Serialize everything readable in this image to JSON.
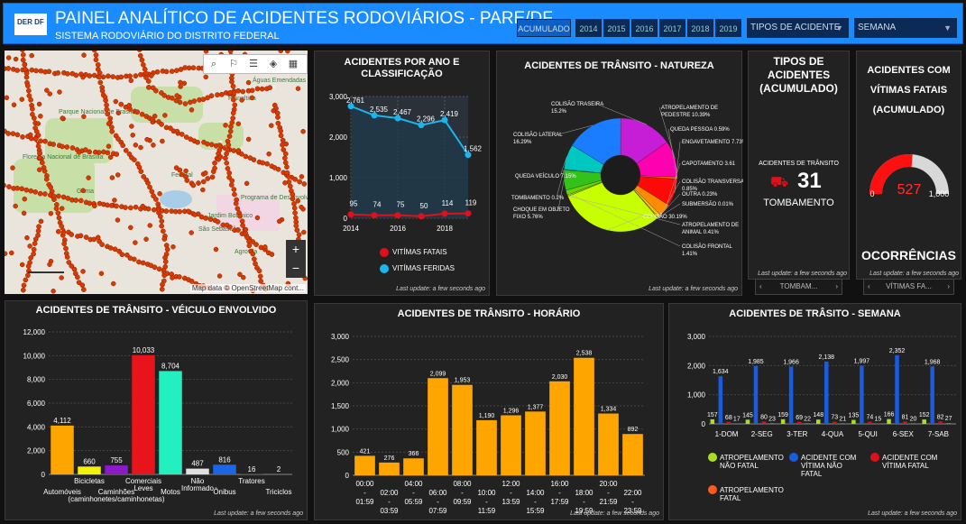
{
  "header": {
    "logo": "DER DF",
    "title": "PAINEL ANALÍTICO DE ACIDENTES RODOVIÁRIOS - PARE/DF",
    "subtitle": "SISTEMA RODOVIÁRIO DO DISTRITO FEDERAL"
  },
  "filters": {
    "years": [
      "ACUMULADO",
      "2014",
      "2015",
      "2016",
      "2017",
      "2018",
      "2019"
    ],
    "tipo": "TIPOS DE ACIDENTE",
    "semana": "SEMANA"
  },
  "map": {
    "labels": [
      "Águas Emendadas",
      "Parque Nacional de Brasília",
      "Floresta Nacional de Brasília",
      "Planaltina",
      "Federal",
      "Jardim Botânico",
      "São Sebastião",
      "Agrovila",
      "Gama",
      "Programa de Desenvolvimento do Distrito Federal e Entorno"
    ],
    "attribution": "Map data © OpenStreetMap cont...",
    "zoom_in": "+",
    "zoom_out": "−"
  },
  "last_update": "Last update: a few seconds ago",
  "ano": {
    "title": [
      "ACIDENTES POR ANO E",
      "CLASSIFICAÇÃO"
    ],
    "legend_fatais": "VITÍMAS FATAIS",
    "legend_feridas": "VITÍMAS FERIDAS"
  },
  "natureza": {
    "title": "ACIDENTES DE TRÂNSITO - NATUREZA"
  },
  "tipos": {
    "title": [
      "TIPOS DE",
      "ACIDENTES",
      "(ACUMULADO)"
    ],
    "caption": "ACIDENTES DE TRÂNSITO",
    "value": "31",
    "label": "TOMBAMENTO",
    "nav": "TOMBAM..."
  },
  "fatais": {
    "title": [
      "ACIDENTES COM",
      "VÍTIMAS FATAIS",
      "(ACUMULADO)"
    ],
    "value": "527",
    "min": "0",
    "max": "1,000",
    "fraction": 0.527,
    "label": "OCORRÊNCIAS",
    "nav": "VÍTIMAS FA..."
  },
  "veiculo": {
    "title": "ACIDENTES DE TRÂNSITO - VÉICULO ENVOLVIDO"
  },
  "horario": {
    "title": "ACIDENTES DE TRÂNSITO - HORÁRIO"
  },
  "semana": {
    "title": "ACIDENTES DE TRÂSITO - SEMANA"
  },
  "chart_data": [
    {
      "type": "line",
      "title": "ACIDENTES POR ANO E CLASSIFICAÇÃO",
      "x": [
        2014,
        2015,
        2016,
        2017,
        2018,
        2019
      ],
      "xticks": [
        "2014",
        "2016",
        "2018"
      ],
      "ylim": [
        0,
        3000
      ],
      "yticks": [
        "0",
        "1,000",
        "2,000",
        "3,000"
      ],
      "series": [
        {
          "name": "VITÍMAS FERIDAS",
          "color": "#1ab6f0",
          "values": [
            2761,
            2535,
            2467,
            2296,
            2419,
            1562
          ],
          "labels": [
            "2,761",
            "2,535",
            "2,467",
            "2,296",
            "2,419",
            "1,562"
          ]
        },
        {
          "name": "VITÍMAS FATAIS",
          "color": "#e0101a",
          "values": [
            95,
            74,
            75,
            50,
            114,
            119
          ],
          "labels": [
            "95",
            "74",
            "75",
            "50",
            "114",
            "119"
          ]
        }
      ]
    },
    {
      "type": "pie",
      "title": "ACIDENTES DE TRÂNSITO - NATUREZA",
      "slices": [
        {
          "label": "COLISÃO TRASEIRA",
          "pct": "15.2%",
          "value": 15.2,
          "color": "#c61dd6"
        },
        {
          "label": "ATROPELAMENTO DE PEDESTRE",
          "pct": "10.39%",
          "value": 10.39,
          "color": "#ff00b0"
        },
        {
          "label": "QUEDA PESSOA",
          "pct": "0.59%",
          "value": 0.59,
          "color": "#ff6a00"
        },
        {
          "label": "ENGAVETAMENTO",
          "pct": "7.73%",
          "value": 7.73,
          "color": "#ff0808"
        },
        {
          "label": "CAPOTAMENTO",
          "pct": "3.61",
          "value": 3.61,
          "color": "#ff8c00"
        },
        {
          "label": "COLISÃO TRANSVERSAL",
          "pct": "0.85%",
          "value": 0.85,
          "color": "#ffc000"
        },
        {
          "label": "OUTRA",
          "pct": "0.23%",
          "value": 0.23,
          "color": "#ffd020"
        },
        {
          "label": "SUBMERSÃO",
          "pct": "0.01%",
          "value": 0.01,
          "color": "#f0e000"
        },
        {
          "label": "COLISÃO",
          "pct": "30.19%",
          "value": 30.19,
          "color": "#c8ff00"
        },
        {
          "label": "ATROPELAMENTO DE ANIMAL",
          "pct": "0.41%",
          "value": 0.41,
          "color": "#9be000"
        },
        {
          "label": "COLISÃO FRONTAL",
          "pct": "1.41%",
          "value": 1.41,
          "color": "#66d400"
        },
        {
          "label": "CHOQUE EM OBJETO FIXO",
          "pct": "5.76%",
          "value": 5.76,
          "color": "#33c21a"
        },
        {
          "label": "TOMBAMENTO",
          "pct": "0.2%",
          "value": 0.2,
          "color": "#00d070"
        },
        {
          "label": "QUEDA VEÍCULO",
          "pct": "7.15%",
          "value": 7.15,
          "color": "#00c8c0"
        },
        {
          "label": "COLISÃO LATERAL",
          "pct": "16.29%",
          "value": 16.29,
          "color": "#1a7cff"
        }
      ]
    },
    {
      "type": "bar",
      "title": "ACIDENTES DE TRÂNSITO - VÉICULO ENVOLVIDO",
      "ylim": [
        0,
        12000
      ],
      "yticks": [
        "0",
        "2,000",
        "4,000",
        "6,000",
        "8,000",
        "10,000",
        "12,000"
      ],
      "categories": [
        {
          "label": "Automóveis",
          "row": 2
        },
        {
          "label": "Bicicletas",
          "row": 1
        },
        {
          "label": "Caminhões (caminhonetes/caminhonetas)",
          "row": 2
        },
        {
          "label": "Comerciais Leves",
          "row": 1
        },
        {
          "label": "Motos",
          "row": 2
        },
        {
          "label": "Não Informado",
          "row": 1
        },
        {
          "label": "Ônibus",
          "row": 2
        },
        {
          "label": "Tratores",
          "row": 1
        },
        {
          "label": "Triciclos",
          "row": 2
        }
      ],
      "values": [
        4112,
        660,
        755,
        10033,
        8704,
        487,
        816,
        16,
        2
      ],
      "labels": [
        "4,112",
        "660",
        "755",
        "10,033",
        "8,704",
        "487",
        "816",
        "16",
        "2"
      ],
      "colors": [
        "#ffa500",
        "#f2f20c",
        "#8a1bc7",
        "#e8141b",
        "#22f0c0",
        "#e0e0e0",
        "#1a66e6",
        "#1a1a1a",
        "#7a1a9a"
      ]
    },
    {
      "type": "bar",
      "title": "ACIDENTES DE TRÂNSITO - HORÁRIO",
      "ylim": [
        0,
        3000
      ],
      "yticks": [
        "0",
        "500",
        "1,000",
        "1,500",
        "2,000",
        "2,500",
        "3,000"
      ],
      "categories": [
        "00:00 - 01:59",
        "02:00 - 03:59",
        "04:00 - 05:59",
        "06:00 - 07:59",
        "08:00 - 09:59",
        "10:00 - 11:59",
        "12:00 - 13:59",
        "14:00 - 15:59",
        "16:00 - 17:59",
        "18:00 - 19:59",
        "20:00 - 21:59",
        "22:00 - 23:59"
      ],
      "values": [
        421,
        276,
        366,
        2099,
        1953,
        1190,
        1296,
        1377,
        2030,
        2538,
        1334,
        892
      ],
      "labels": [
        "421",
        "276",
        "366",
        "2,099",
        "1,953",
        "1,190",
        "1,296",
        "1,377",
        "2,030",
        "2,538",
        "1,334",
        "892"
      ],
      "color": "#ffa500"
    },
    {
      "type": "bar",
      "title": "ACIDENTES DE TRÂSITO - SEMANA",
      "ylim": [
        0,
        3000
      ],
      "yticks": [
        "0",
        "1,000",
        "2,000",
        "3,000"
      ],
      "categories": [
        "1-DOM",
        "2-SEG",
        "3-TER",
        "4-QUA",
        "5-QUI",
        "6-SEX",
        "7-SAB"
      ],
      "series": [
        {
          "name": "ATROPELAMENTO NÃO FATAL",
          "color": "#a8e020",
          "values": [
            157,
            145,
            159,
            148,
            135,
            166,
            152
          ],
          "labels": [
            "157",
            "145",
            "159",
            "148",
            "135",
            "166",
            "152"
          ]
        },
        {
          "name": "ACIDENTE COM VÍTIMA NÃO FATAL",
          "color": "#1a5ce0",
          "values": [
            1634,
            1985,
            1966,
            2138,
            1997,
            2352,
            1968
          ],
          "labels": [
            "1,634",
            "1,985",
            "1,966",
            "2,138",
            "1,997",
            "2,352",
            "1,968"
          ]
        },
        {
          "name": "ACIDENTE COM VÍTIMA FATAL",
          "color": "#e0101a",
          "values": [
            68,
            80,
            69,
            73,
            74,
            81,
            82
          ],
          "labels": [
            "68",
            "80",
            "69",
            "73",
            "74",
            "81",
            "82"
          ]
        },
        {
          "name": "ATROPELAMENTO FATAL",
          "color": "#ff5a1a",
          "values": [
            17,
            23,
            22,
            21,
            15,
            20,
            27
          ],
          "labels": [
            "17",
            "23",
            "22",
            "21",
            "15",
            "20",
            "27"
          ]
        }
      ]
    }
  ]
}
